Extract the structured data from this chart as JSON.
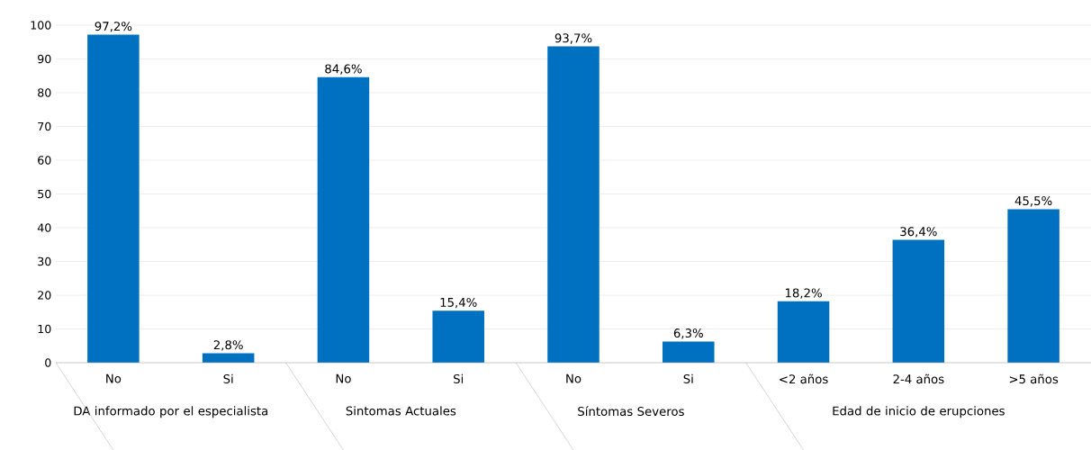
{
  "chart_data": {
    "type": "bar",
    "categories": [
      "No",
      "Si",
      "No",
      "Si",
      "No",
      "Si",
      "<2 años",
      "2-4 años",
      ">5 años"
    ],
    "values": [
      97.2,
      2.8,
      84.6,
      15.4,
      93.7,
      6.3,
      18.2,
      36.4,
      45.5
    ],
    "value_labels": [
      "97,2%",
      "2,8%",
      "84,6%",
      "15,4%",
      "93,7%",
      "6,3%",
      "18,2%",
      "36,4%",
      "45,5%"
    ],
    "color": "#0070c0",
    "ylim": [
      0,
      100
    ],
    "yticks": [
      0,
      10,
      20,
      30,
      40,
      50,
      60,
      70,
      80,
      90,
      100
    ],
    "grid": "y",
    "annotations": [
      "DA informado por el especialista",
      "Sintomas Actuales",
      "Síntomas Severos",
      "Edad de inicio de erupciones"
    ]
  }
}
